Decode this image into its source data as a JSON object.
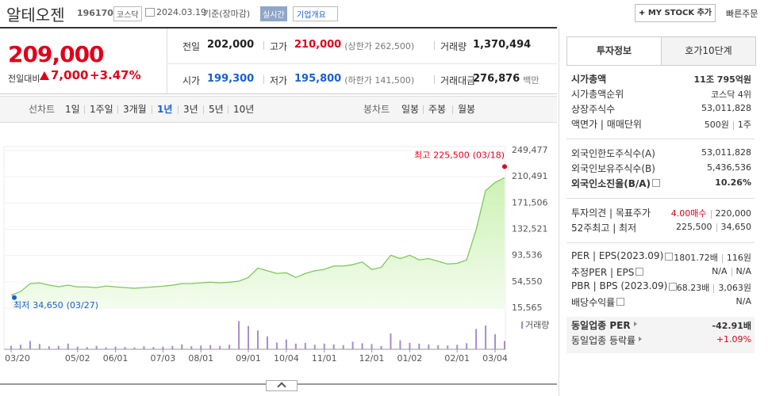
{
  "header": {
    "name": "알테오젠",
    "code": "196170",
    "market": "코스닥",
    "date": "2024.03.19",
    "basis": "기준(장마감)",
    "badge": "실시간",
    "company_info": "기업개요",
    "my_stock": "MY STOCK 추가",
    "quick_order": "빠른주문"
  },
  "price": {
    "current": "209,000",
    "change_label": "전일대비",
    "change": "7,000",
    "change_pct": "+3.47%"
  },
  "stats": [
    {
      "label": "전일",
      "value": "202,000",
      "color": "#222222"
    },
    {
      "label": "고가",
      "value": "210,000",
      "color": "#e0001a",
      "extra": "(상한가 262,500)"
    },
    {
      "label": "거래량",
      "value": "1,370,494",
      "color": "#222222"
    },
    {
      "label": "시가",
      "value": "199,300",
      "color": "#1a5fd0"
    },
    {
      "label": "저가",
      "value": "195,800",
      "color": "#1a5fd0",
      "extra": "(하한가 141,500)"
    },
    {
      "label": "거래대금",
      "value": "276,876",
      "color": "#222222",
      "extra": "백만"
    }
  ],
  "tabs": {
    "line_chart": "선차트",
    "periods": [
      "1일",
      "1주일",
      "3개월",
      "1년",
      "3년",
      "5년",
      "10년"
    ],
    "active_period": 3,
    "candle_chart": "봉차트",
    "candles": [
      "일봉",
      "주봉",
      "월봉"
    ]
  },
  "chart_data": {
    "type": "area",
    "color": "#7cc95a",
    "categories": [
      "03/20",
      null,
      null,
      null,
      null,
      null,
      null,
      "05/02",
      null,
      null,
      null,
      "06/01",
      null,
      null,
      null,
      null,
      "07/03",
      null,
      null,
      null,
      "08/01",
      null,
      null,
      null,
      null,
      "09/01",
      null,
      null,
      null,
      "10/04",
      null,
      null,
      null,
      "11/01",
      null,
      null,
      null,
      null,
      "12/01",
      null,
      null,
      null,
      "01/02",
      null,
      null,
      null,
      null,
      "02/01",
      null,
      null,
      null,
      "03/04",
      null
    ],
    "series": [
      {
        "name": "종가",
        "color": "#7cc95a",
        "values": [
          34650,
          40000,
          52000,
          53000,
          49600,
          47300,
          49600,
          47000,
          47000,
          46000,
          48300,
          47000,
          46000,
          45000,
          46000,
          47000,
          48000,
          49600,
          52000,
          52000,
          53000,
          54000,
          53000,
          54000,
          55500,
          61000,
          75000,
          71000,
          67000,
          68000,
          61000,
          67000,
          71000,
          73000,
          78000,
          78000,
          80000,
          84000,
          73000,
          76000,
          94000,
          89000,
          94000,
          87000,
          89000,
          85000,
          81000,
          82000,
          87000,
          132000,
          190000,
          202000,
          209000
        ]
      }
    ],
    "volume": {
      "name": "거래량",
      "color": "#a98bd0",
      "values": [
        900000,
        1200000,
        2200000,
        1400000,
        800000,
        900000,
        1500000,
        700000,
        600000,
        900000,
        500000,
        700000,
        600000,
        500000,
        800000,
        600000,
        700000,
        900000,
        1300000,
        800000,
        1000000,
        1100000,
        900000,
        1200000,
        7500000,
        6200000,
        5000000,
        3400000,
        1800000,
        2600000,
        1500000,
        1700000,
        1200000,
        1500000,
        1300000,
        1100000,
        2000000,
        1600000,
        1400000,
        900000,
        4200000,
        2400000,
        1700000,
        1500000,
        1300000,
        1100000,
        1000000,
        1200000,
        1600000,
        5400000,
        6300000,
        4000000,
        2200000
      ],
      "ylim": [
        0,
        8000000
      ]
    },
    "ylim": [
      15565,
      249477
    ],
    "yticks": [
      {
        "value": 15565,
        "label": "15,565"
      },
      {
        "value": 54550,
        "label": "54,550"
      },
      {
        "value": 93536,
        "label": "93,536"
      },
      {
        "value": 132521,
        "label": "132,521"
      },
      {
        "value": 171506,
        "label": "171,506"
      },
      {
        "value": 210491,
        "label": "210,491"
      },
      {
        "value": 249477,
        "label": "249,477"
      }
    ],
    "high": {
      "label": "최고",
      "value": 225500,
      "value_label": "225,500",
      "date": "(03/18)"
    },
    "low": {
      "label": "최저",
      "value": 34650,
      "value_label": "34,650",
      "date": "(03/27)"
    }
  },
  "info": {
    "tabs": [
      "투자정보",
      "호가10단계"
    ],
    "sections": [
      [
        {
          "label": "시가총액",
          "values": [
            "11조 795억원"
          ],
          "bold": true
        },
        {
          "label": "시가총액순위",
          "values": [
            "코스닥 4위"
          ]
        },
        {
          "label": "상장주식수",
          "values": [
            "53,011,828"
          ]
        },
        {
          "label": "액면가 | 매매단위",
          "values": [
            "500원",
            "1주"
          ]
        }
      ],
      [
        {
          "label": "외국인한도주식수(A)",
          "values": [
            "53,011,828"
          ]
        },
        {
          "label": "외국인보유주식수(B)",
          "values": [
            "5,436,536"
          ]
        },
        {
          "label": "외국인소진율(B/A)",
          "values": [
            "10.26%"
          ],
          "bold": true,
          "help": true
        }
      ],
      [
        {
          "label": "투자의견 | 목표주가",
          "values": [
            "4.00매수",
            "220,000"
          ],
          "colors": [
            "#e0001a",
            "#333333"
          ]
        },
        {
          "label": "52주최고 | 최저",
          "values": [
            "225,500",
            "34,650"
          ]
        }
      ],
      [
        {
          "label": "PER | EPS(2023.09)",
          "values": [
            "1801.72배",
            "116원"
          ],
          "help": true
        },
        {
          "label": "추정PER | EPS",
          "values": [
            "N/A",
            "N/A"
          ],
          "help": true
        },
        {
          "label": "PBR | BPS (2023.09)",
          "values": [
            "68.23배",
            "3,063원"
          ],
          "help": true
        },
        {
          "label": "배당수익률",
          "values": [
            "N/A"
          ],
          "help": true
        }
      ],
      [
        {
          "label": "동일업종 PER",
          "values": [
            "-42.91배"
          ],
          "bold": true,
          "arrow": true
        },
        {
          "label": "동일업종 등락률",
          "values": [
            "+1.09%"
          ],
          "colors": [
            "#e0001a"
          ],
          "arrow": true
        }
      ]
    ]
  }
}
